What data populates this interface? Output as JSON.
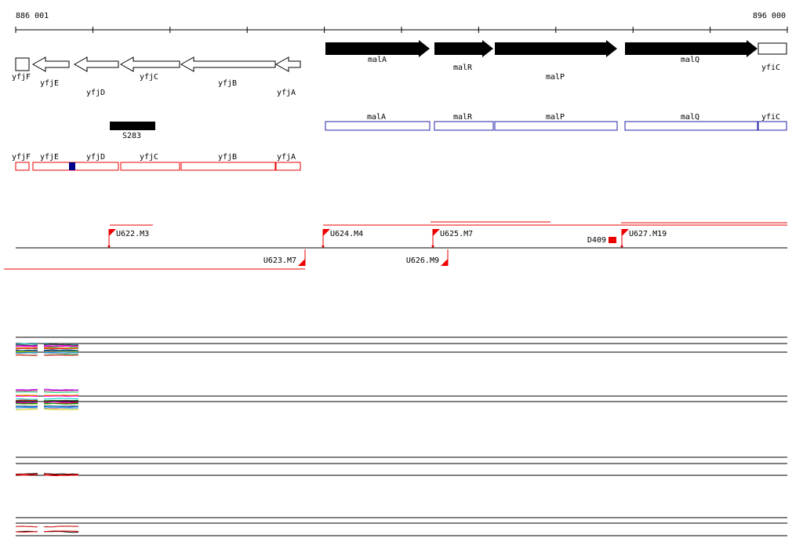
{
  "ruler": {
    "start": "886 001",
    "end": "896 000"
  },
  "genes": [
    "yfjF",
    "yfjE",
    "yfjD",
    "yfjC",
    "yfjB",
    "yfjA",
    "malA",
    "malR",
    "malP",
    "malQ",
    "yfiC"
  ],
  "segment": "S283",
  "blue_features": [
    "malA",
    "malR",
    "malP",
    "malQ",
    "yfiC"
  ],
  "red_features": [
    "yfjF",
    "yfjE",
    "yfjD",
    "yfjC",
    "yfjB",
    "yfjA"
  ],
  "markers": [
    "U622.M3",
    "U624.M4",
    "U625.M7",
    "U627.M19",
    "U623.M7",
    "U626.M9",
    "D409"
  ]
}
